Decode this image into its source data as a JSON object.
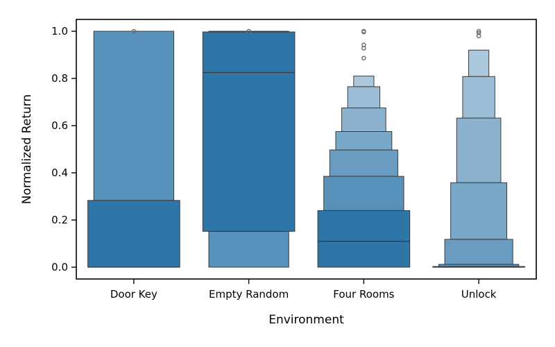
{
  "chart_data": {
    "type": "boxen",
    "xlabel": "Environment",
    "ylabel": "Normalized Return",
    "ylim": [
      -0.05,
      1.05
    ],
    "yticks": [
      0.0,
      0.2,
      0.4,
      0.6,
      0.8,
      1.0
    ],
    "ytick_labels": [
      "0.0",
      "0.2",
      "0.4",
      "0.6",
      "0.8",
      "1.0"
    ],
    "categories": [
      "Door Key",
      "Empty Random",
      "Four Rooms",
      "Unlock"
    ],
    "colors": {
      "Door Key": "#2e75a8",
      "Empty Random": "#2e75a8",
      "Four Rooms": "#2e75a8",
      "Unlock": "#2e75a8",
      "edge": "#3a3a3a",
      "outlier": "#6b6b6b"
    },
    "series": [
      {
        "category": "Door Key",
        "median": 0.0,
        "levels": [
          {
            "low": 0.0,
            "high": 0.283,
            "shade": 0
          },
          {
            "low": 0.283,
            "high": 1.0,
            "shade": 1
          }
        ],
        "outliers": [
          1.0
        ]
      },
      {
        "category": "Empty Random",
        "median": 0.825,
        "levels": [
          {
            "low": 0.152,
            "high": 0.997,
            "shade": 0
          },
          {
            "low": 0.0,
            "high": 0.152,
            "shade": 1
          },
          {
            "low": 0.997,
            "high": 1.0,
            "shade": 1
          }
        ],
        "outliers": [
          1.0
        ]
      },
      {
        "category": "Four Rooms",
        "median": 0.11,
        "levels": [
          {
            "low": 0.0,
            "high": 0.24,
            "shade": 0
          },
          {
            "low": 0.24,
            "high": 0.385,
            "shade": 1
          },
          {
            "low": 0.385,
            "high": 0.497,
            "shade": 2
          },
          {
            "low": 0.497,
            "high": 0.575,
            "shade": 3
          },
          {
            "low": 0.575,
            "high": 0.675,
            "shade": 4
          },
          {
            "low": 0.675,
            "high": 0.765,
            "shade": 5
          },
          {
            "low": 0.765,
            "high": 0.81,
            "shade": 6
          }
        ],
        "outliers": [
          0.886,
          0.928,
          0.942,
          0.997,
          1.0
        ]
      },
      {
        "category": "Unlock",
        "median": 0.0,
        "levels": [
          {
            "low": 0.0,
            "high": 0.003,
            "shade": 0
          },
          {
            "low": 0.003,
            "high": 0.012,
            "shade": 1
          },
          {
            "low": 0.012,
            "high": 0.118,
            "shade": 2
          },
          {
            "low": 0.118,
            "high": 0.358,
            "shade": 3
          },
          {
            "low": 0.358,
            "high": 0.632,
            "shade": 4
          },
          {
            "low": 0.632,
            "high": 0.808,
            "shade": 5
          },
          {
            "low": 0.808,
            "high": 0.92,
            "shade": 6
          }
        ],
        "outliers": [
          0.98,
          0.993,
          1.0
        ]
      }
    ]
  }
}
